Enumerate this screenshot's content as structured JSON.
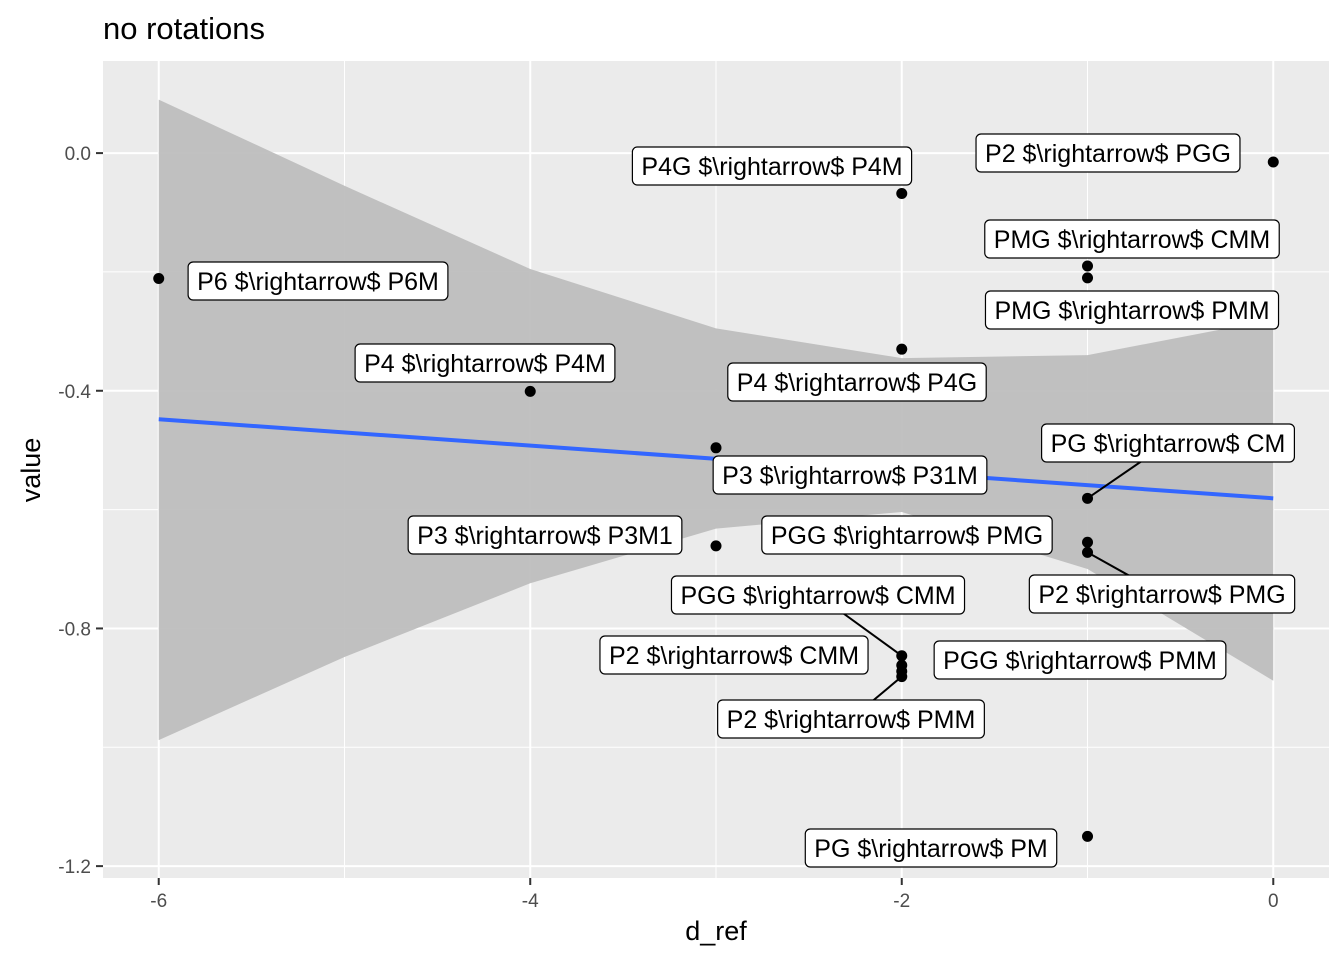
{
  "chart_data": {
    "type": "scatter",
    "title": "no rotations",
    "xlabel": "d_ref",
    "ylabel": "value",
    "xlim": [
      -6.3,
      0.3
    ],
    "ylim": [
      -1.22,
      0.155
    ],
    "x_ticks": [
      -6,
      -4,
      -2,
      0
    ],
    "x_tick_labels": [
      "-6",
      "-4",
      "-2",
      "0"
    ],
    "y_ticks": [
      0.0,
      -0.4,
      -0.8,
      -1.2
    ],
    "y_tick_labels": [
      "0.0",
      "-0.4",
      "-0.8",
      "-1.2"
    ],
    "grid": true,
    "legend": "none",
    "points": [
      {
        "x": -6,
        "y": -0.211,
        "label": "P6 $\\rightarrow$ P6M"
      },
      {
        "x": -4,
        "y": -0.401,
        "label": "P4 $\\rightarrow$ P4M"
      },
      {
        "x": -3,
        "y": -0.496,
        "label": "P3 $\\rightarrow$ P31M"
      },
      {
        "x": -3,
        "y": -0.661,
        "label": "P3 $\\rightarrow$ P3M1"
      },
      {
        "x": -2,
        "y": -0.068,
        "label": "P4G $\\rightarrow$ P4M"
      },
      {
        "x": -2,
        "y": -0.33,
        "label": "P4 $\\rightarrow$ P4G"
      },
      {
        "x": -2,
        "y": -0.846,
        "label": "PGG $\\rightarrow$ CMM"
      },
      {
        "x": -2,
        "y": -0.862,
        "label": "PGG $\\rightarrow$ PMM"
      },
      {
        "x": -2,
        "y": -0.872,
        "label": "P2 $\\rightarrow$ CMM"
      },
      {
        "x": -2,
        "y": -0.881,
        "label": "P2 $\\rightarrow$ PMM"
      },
      {
        "x": -1,
        "y": -0.19,
        "label": "PMG $\\rightarrow$ CMM"
      },
      {
        "x": -1,
        "y": -0.21,
        "label": "PMG $\\rightarrow$ PMM"
      },
      {
        "x": -1,
        "y": -0.581,
        "label": "PG $\\rightarrow$ CM"
      },
      {
        "x": -1,
        "y": -0.655,
        "label": "PGG $\\rightarrow$ PMG"
      },
      {
        "x": -1,
        "y": -0.672,
        "label": "P2 $\\rightarrow$ PMG"
      },
      {
        "x": -1,
        "y": -1.15,
        "label": "PG $\\rightarrow$ PM"
      },
      {
        "x": 0,
        "y": -0.015,
        "label": "P2 $\\rightarrow$ PGG"
      }
    ],
    "fit_line": {
      "x": [
        -6,
        0
      ],
      "y": [
        -0.448,
        -0.581
      ],
      "color": "#3366FF"
    },
    "confidence_band": {
      "x": [
        -6,
        -5,
        -4,
        -3,
        -2,
        -1,
        0
      ],
      "upper": [
        0.09,
        -0.055,
        -0.195,
        -0.295,
        -0.345,
        -0.34,
        -0.28
      ],
      "lower": [
        -0.988,
        -0.848,
        -0.724,
        -0.632,
        -0.604,
        -0.7,
        -0.888
      ],
      "color": "#BEBEBE"
    },
    "colors": {
      "panel_background": "#EBEBEB",
      "point": "#000000",
      "fit_line": "#3366FF",
      "band": "#BEBEBE"
    }
  }
}
